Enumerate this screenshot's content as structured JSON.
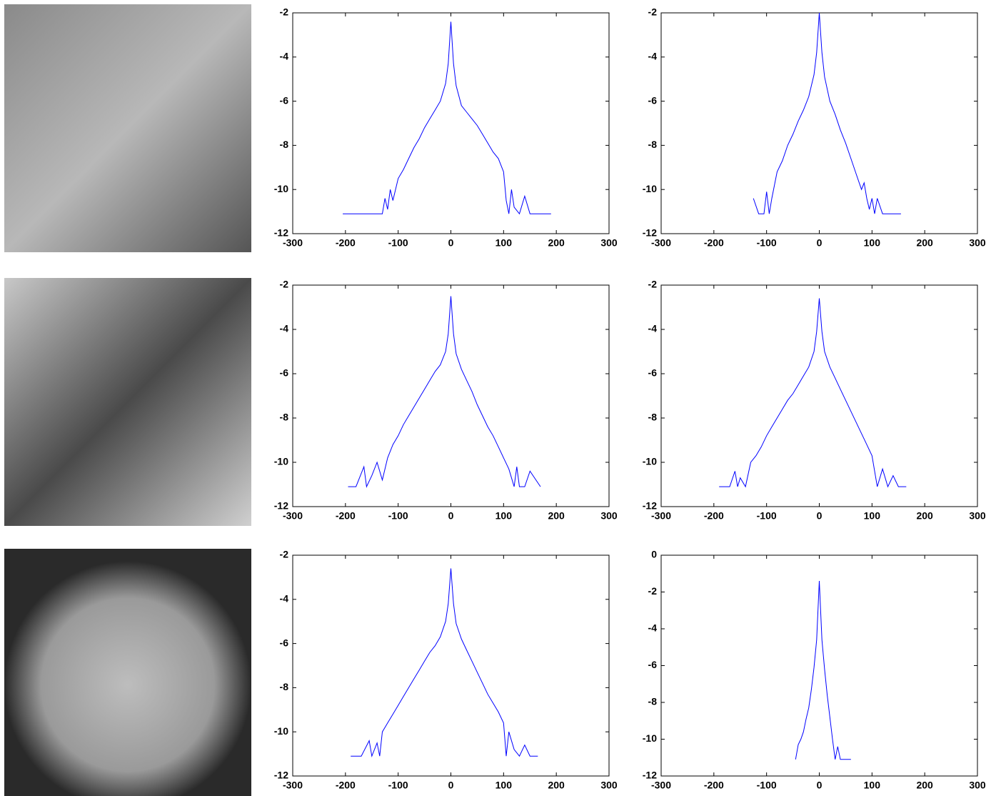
{
  "chart_data": [
    {
      "type": "line",
      "xlim": [
        -300,
        300
      ],
      "xticks": [
        -300,
        -200,
        -100,
        0,
        100,
        200,
        300
      ],
      "ylim": [
        -12,
        -2
      ],
      "yticks": [
        -12,
        -10,
        -8,
        -6,
        -4,
        -2
      ],
      "series": [
        {
          "color": "#0000ff",
          "x": [
            -205,
            -180,
            -160,
            -140,
            -130,
            -125,
            -120,
            -115,
            -110,
            -100,
            -90,
            -80,
            -70,
            -60,
            -50,
            -40,
            -30,
            -20,
            -10,
            -5,
            0,
            5,
            10,
            20,
            30,
            40,
            50,
            60,
            70,
            80,
            90,
            100,
            105,
            110,
            115,
            120,
            130,
            140,
            150,
            160,
            170,
            180,
            190
          ],
          "values": [
            -11.1,
            -11.1,
            -11.1,
            -11.1,
            -11.1,
            -10.4,
            -10.9,
            -10.0,
            -10.5,
            -9.5,
            -9.1,
            -8.6,
            -8.1,
            -7.7,
            -7.2,
            -6.8,
            -6.4,
            -6.0,
            -5.2,
            -4.3,
            -2.4,
            -4.3,
            -5.3,
            -6.2,
            -6.5,
            -6.8,
            -7.1,
            -7.5,
            -7.9,
            -8.3,
            -8.6,
            -9.2,
            -10.5,
            -11.1,
            -10.0,
            -10.8,
            -11.1,
            -10.3,
            -11.1,
            -11.1,
            -11.1,
            -11.1,
            -11.1
          ]
        }
      ]
    },
    {
      "type": "line",
      "xlim": [
        -300,
        300
      ],
      "xticks": [
        -300,
        -200,
        -100,
        0,
        100,
        200,
        300
      ],
      "ylim": [
        -12,
        -2
      ],
      "yticks": [
        -12,
        -10,
        -8,
        -6,
        -4,
        -2
      ],
      "series": [
        {
          "color": "#0000ff",
          "x": [
            -125,
            -115,
            -105,
            -100,
            -95,
            -90,
            -80,
            -70,
            -60,
            -50,
            -40,
            -30,
            -20,
            -10,
            -5,
            0,
            5,
            10,
            20,
            30,
            40,
            50,
            60,
            70,
            80,
            85,
            90,
            95,
            100,
            105,
            110,
            120,
            130,
            140,
            155
          ],
          "values": [
            -10.4,
            -11.1,
            -11.1,
            -10.1,
            -11.1,
            -10.4,
            -9.2,
            -8.7,
            -8.0,
            -7.5,
            -6.9,
            -6.4,
            -5.8,
            -4.8,
            -3.8,
            -2.0,
            -3.8,
            -4.9,
            -6.0,
            -6.6,
            -7.3,
            -7.9,
            -8.6,
            -9.3,
            -10.0,
            -9.7,
            -10.4,
            -10.9,
            -10.4,
            -11.1,
            -10.4,
            -11.1,
            -11.1,
            -11.1,
            -11.1
          ]
        }
      ]
    },
    {
      "type": "line",
      "xlim": [
        -300,
        300
      ],
      "xticks": [
        -300,
        -200,
        -100,
        0,
        100,
        200,
        300
      ],
      "ylim": [
        -12,
        -2
      ],
      "yticks": [
        -12,
        -10,
        -8,
        -6,
        -4,
        -2
      ],
      "series": [
        {
          "color": "#0000ff",
          "x": [
            -195,
            -180,
            -165,
            -160,
            -150,
            -140,
            -130,
            -120,
            -110,
            -100,
            -90,
            -80,
            -70,
            -60,
            -50,
            -40,
            -30,
            -20,
            -10,
            -5,
            0,
            5,
            10,
            20,
            30,
            40,
            50,
            60,
            70,
            80,
            90,
            100,
            110,
            120,
            125,
            130,
            140,
            150,
            170
          ],
          "values": [
            -11.1,
            -11.1,
            -10.2,
            -11.1,
            -10.6,
            -10.0,
            -10.8,
            -9.8,
            -9.2,
            -8.8,
            -8.3,
            -7.9,
            -7.5,
            -7.1,
            -6.7,
            -6.3,
            -5.9,
            -5.6,
            -5.0,
            -4.2,
            -2.5,
            -4.2,
            -5.1,
            -5.8,
            -6.3,
            -6.8,
            -7.4,
            -7.9,
            -8.4,
            -8.8,
            -9.3,
            -9.8,
            -10.3,
            -11.1,
            -10.2,
            -11.1,
            -11.1,
            -10.4,
            -11.1
          ]
        }
      ]
    },
    {
      "type": "line",
      "xlim": [
        -300,
        300
      ],
      "xticks": [
        -300,
        -200,
        -100,
        0,
        100,
        200,
        300
      ],
      "ylim": [
        -12,
        -2
      ],
      "yticks": [
        -12,
        -10,
        -8,
        -6,
        -4,
        -2
      ],
      "series": [
        {
          "color": "#0000ff",
          "x": [
            -190,
            -170,
            -160,
            -155,
            -150,
            -140,
            -130,
            -120,
            -110,
            -100,
            -90,
            -80,
            -70,
            -60,
            -50,
            -40,
            -30,
            -20,
            -10,
            -5,
            0,
            5,
            10,
            20,
            30,
            40,
            50,
            60,
            70,
            80,
            90,
            100,
            110,
            120,
            130,
            140,
            150,
            165
          ],
          "values": [
            -11.1,
            -11.1,
            -10.4,
            -11.1,
            -10.7,
            -11.1,
            -10.0,
            -9.7,
            -9.3,
            -8.8,
            -8.4,
            -8.0,
            -7.6,
            -7.2,
            -6.9,
            -6.5,
            -6.1,
            -5.7,
            -5.0,
            -4.1,
            -2.6,
            -4.1,
            -5.0,
            -5.7,
            -6.2,
            -6.7,
            -7.2,
            -7.7,
            -8.2,
            -8.7,
            -9.2,
            -9.7,
            -11.1,
            -10.3,
            -11.1,
            -10.6,
            -11.1,
            -11.1
          ]
        }
      ]
    },
    {
      "type": "line",
      "xlim": [
        -300,
        300
      ],
      "xticks": [
        -300,
        -200,
        -100,
        0,
        100,
        200,
        300
      ],
      "ylim": [
        -12,
        -2
      ],
      "yticks": [
        -12,
        -10,
        -8,
        -6,
        -4,
        -2
      ],
      "series": [
        {
          "color": "#0000ff",
          "x": [
            -190,
            -170,
            -155,
            -150,
            -140,
            -135,
            -130,
            -120,
            -110,
            -100,
            -90,
            -80,
            -70,
            -60,
            -50,
            -40,
            -30,
            -20,
            -10,
            -5,
            0,
            5,
            10,
            20,
            30,
            40,
            50,
            60,
            70,
            80,
            90,
            100,
            105,
            110,
            120,
            130,
            140,
            150,
            165
          ],
          "values": [
            -11.1,
            -11.1,
            -10.4,
            -11.1,
            -10.5,
            -11.1,
            -10.0,
            -9.6,
            -9.2,
            -8.8,
            -8.4,
            -8.0,
            -7.6,
            -7.2,
            -6.8,
            -6.4,
            -6.1,
            -5.7,
            -5.0,
            -4.2,
            -2.6,
            -4.2,
            -5.1,
            -5.8,
            -6.3,
            -6.8,
            -7.3,
            -7.8,
            -8.3,
            -8.7,
            -9.1,
            -9.6,
            -11.1,
            -10.0,
            -10.8,
            -11.1,
            -10.6,
            -11.1,
            -11.1
          ]
        }
      ]
    },
    {
      "type": "line",
      "xlim": [
        -300,
        300
      ],
      "xticks": [
        -300,
        -200,
        -100,
        0,
        100,
        200,
        300
      ],
      "ylim": [
        -12,
        0
      ],
      "yticks": [
        -12,
        -10,
        -8,
        -6,
        -4,
        -2,
        0
      ],
      "series": [
        {
          "color": "#0000ff",
          "x": [
            -45,
            -40,
            -35,
            -30,
            -25,
            -20,
            -15,
            -10,
            -5,
            0,
            5,
            10,
            15,
            20,
            25,
            30,
            35,
            40,
            45,
            60
          ],
          "values": [
            -11.1,
            -10.3,
            -10.0,
            -9.6,
            -8.9,
            -8.3,
            -7.3,
            -6.1,
            -4.6,
            -1.4,
            -4.6,
            -6.2,
            -7.6,
            -8.8,
            -10.0,
            -11.1,
            -10.4,
            -11.1,
            -11.1,
            -11.1
          ]
        }
      ]
    }
  ]
}
